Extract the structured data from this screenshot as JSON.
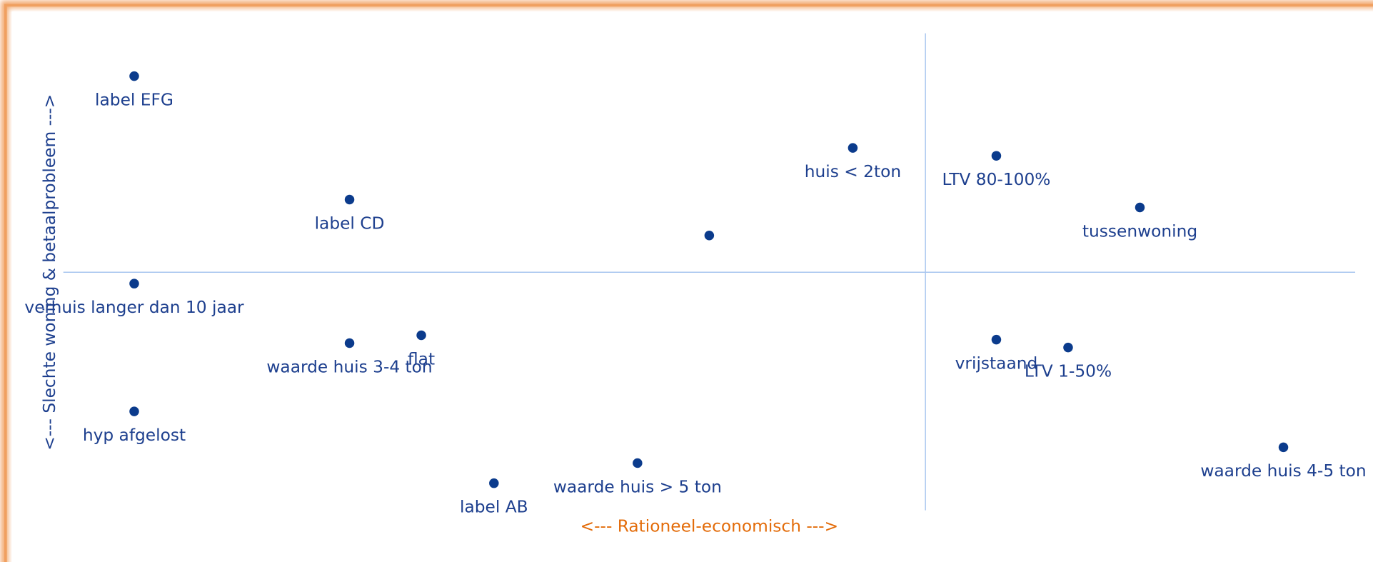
{
  "chart_data": {
    "type": "scatter",
    "x_label": "<--- Rationeel-economisch --->",
    "y_label": "<--- Slechte woning & betaalprobleem --->",
    "x": [
      -9.04,
      -6.58,
      -2.47,
      -0.83,
      0.81,
      2.45,
      -9.04,
      -6.58,
      -5.76,
      -9.04,
      -4.93,
      -3.29,
      0.81,
      1.63,
      4.09
    ],
    "values": [
      2.24,
      0.83,
      0.42,
      1.42,
      1.33,
      0.74,
      -0.13,
      -0.81,
      -0.72,
      -1.59,
      -2.41,
      -2.18,
      -0.77,
      -0.86,
      -2.0
    ],
    "labels": [
      "label EFG",
      "label CD",
      null,
      "huis < 2ton",
      "LTV 80-100%",
      "tussenwoning",
      "verhuis langer dan 10 jaar",
      "waarde huis 3-4 ton",
      "flat",
      "hyp afgelost",
      "label AB",
      "waarde huis > 5 ton",
      "vrijstaand",
      "LTV 1-50%",
      "waarde huis 4-5 ton"
    ],
    "color": "#0b3b8c",
    "label_color": "#1d3f8e",
    "x_label_color": "#e36c0a",
    "line_color": "#a9c6ef",
    "xlim": [
      -9.85,
      4.91
    ],
    "ylim": [
      -2.72,
      2.73
    ],
    "reference_lines": {
      "x": 0,
      "y": 0
    }
  }
}
